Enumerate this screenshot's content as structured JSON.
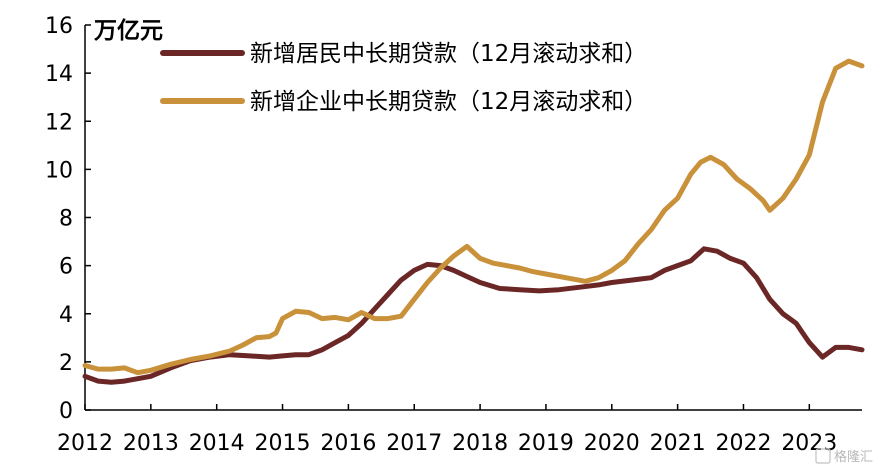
{
  "chart_data": {
    "type": "line",
    "unit_label": "万亿元",
    "ylim": [
      0,
      16
    ],
    "yticks": [
      0,
      2,
      4,
      6,
      8,
      10,
      12,
      14,
      16
    ],
    "xlim": [
      2012.0,
      2023.8
    ],
    "xticks": [
      2012,
      2013,
      2014,
      2015,
      2016,
      2017,
      2018,
      2019,
      2020,
      2021,
      2022,
      2023
    ],
    "xtick_labels": [
      "2012",
      "2013",
      "2014",
      "2015",
      "2016",
      "2017",
      "2018",
      "2019",
      "2020",
      "2021",
      "2022",
      "2023"
    ],
    "legend_position": "top",
    "grid": false,
    "series": [
      {
        "name": "新增居民中长期贷款（12月滚动求和）",
        "color": "#6b2626",
        "x": [
          2012.0,
          2012.2,
          2012.4,
          2012.6,
          2012.8,
          2013.0,
          2013.3,
          2013.6,
          2013.9,
          2014.2,
          2014.5,
          2014.8,
          2015.0,
          2015.2,
          2015.4,
          2015.6,
          2015.8,
          2016.0,
          2016.2,
          2016.4,
          2016.6,
          2016.8,
          2017.0,
          2017.2,
          2017.4,
          2017.6,
          2017.8,
          2018.0,
          2018.3,
          2018.6,
          2018.9,
          2019.2,
          2019.5,
          2019.8,
          2020.0,
          2020.3,
          2020.6,
          2020.8,
          2021.0,
          2021.2,
          2021.4,
          2021.6,
          2021.8,
          2022.0,
          2022.2,
          2022.4,
          2022.6,
          2022.8,
          2022.9,
          2023.0,
          2023.2,
          2023.4,
          2023.6,
          2023.8
        ],
        "values": [
          1.4,
          1.2,
          1.15,
          1.2,
          1.3,
          1.4,
          1.75,
          2.05,
          2.2,
          2.3,
          2.25,
          2.2,
          2.25,
          2.3,
          2.3,
          2.5,
          2.8,
          3.1,
          3.6,
          4.2,
          4.8,
          5.4,
          5.8,
          6.05,
          6.0,
          5.8,
          5.55,
          5.3,
          5.05,
          5.0,
          4.95,
          5.0,
          5.1,
          5.2,
          5.3,
          5.4,
          5.5,
          5.8,
          6.0,
          6.2,
          6.7,
          6.6,
          6.3,
          6.1,
          5.5,
          4.6,
          4.0,
          3.6,
          3.2,
          2.8,
          2.2,
          2.6,
          2.6,
          2.5
        ]
      },
      {
        "name": "新增企业中长期贷款（12月滚动求和）",
        "color": "#c8913a",
        "x": [
          2012.0,
          2012.2,
          2012.4,
          2012.6,
          2012.8,
          2013.0,
          2013.3,
          2013.6,
          2013.9,
          2014.2,
          2014.4,
          2014.6,
          2014.8,
          2014.9,
          2015.0,
          2015.2,
          2015.4,
          2015.6,
          2015.8,
          2016.0,
          2016.2,
          2016.4,
          2016.6,
          2016.8,
          2017.0,
          2017.2,
          2017.4,
          2017.6,
          2017.8,
          2018.0,
          2018.2,
          2018.4,
          2018.6,
          2018.8,
          2019.0,
          2019.3,
          2019.6,
          2019.8,
          2020.0,
          2020.2,
          2020.4,
          2020.6,
          2020.8,
          2021.0,
          2021.2,
          2021.35,
          2021.5,
          2021.7,
          2021.9,
          2022.1,
          2022.3,
          2022.4,
          2022.6,
          2022.8,
          2023.0,
          2023.2,
          2023.4,
          2023.6,
          2023.8
        ],
        "values": [
          1.85,
          1.7,
          1.7,
          1.75,
          1.55,
          1.65,
          1.9,
          2.1,
          2.25,
          2.45,
          2.7,
          3.0,
          3.05,
          3.2,
          3.8,
          4.1,
          4.05,
          3.8,
          3.85,
          3.75,
          4.05,
          3.8,
          3.8,
          3.9,
          4.6,
          5.3,
          5.9,
          6.4,
          6.8,
          6.3,
          6.1,
          6.0,
          5.9,
          5.75,
          5.65,
          5.5,
          5.35,
          5.5,
          5.8,
          6.2,
          6.9,
          7.5,
          8.3,
          8.8,
          9.8,
          10.3,
          10.5,
          10.2,
          9.6,
          9.2,
          8.7,
          8.3,
          8.8,
          9.6,
          10.6,
          12.8,
          14.2,
          14.5,
          14.3
        ]
      }
    ]
  },
  "watermark": "格隆汇"
}
